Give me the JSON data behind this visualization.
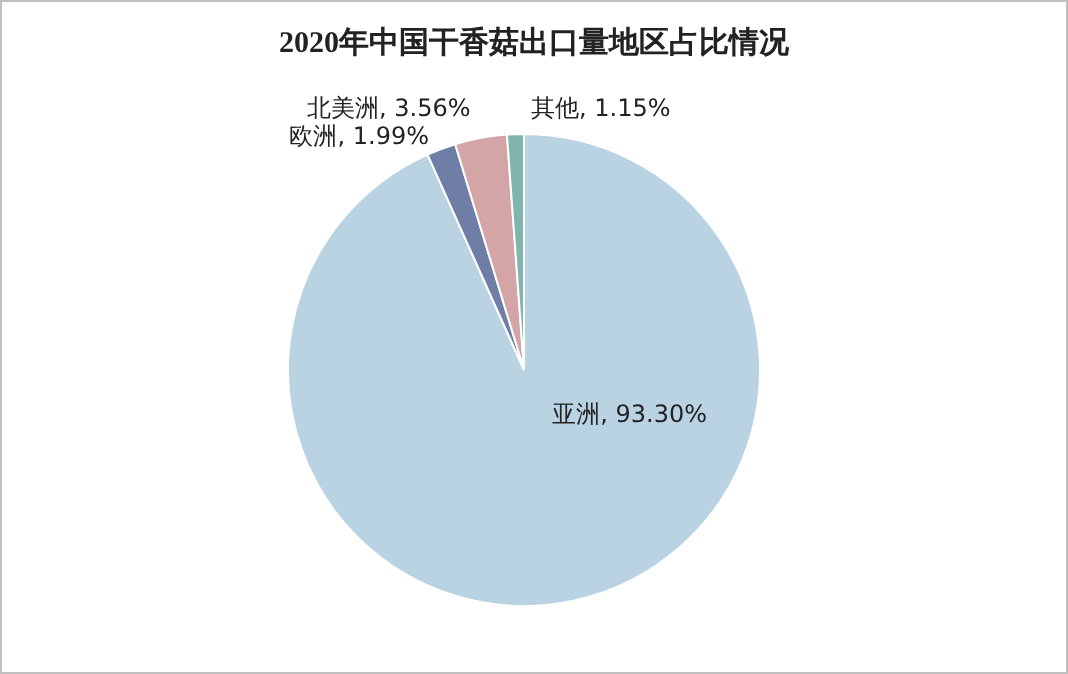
{
  "chart_data": {
    "type": "pie",
    "title": "2020年中国干香菇出口量地区占比情况",
    "categories": [
      "亚洲",
      "欧洲",
      "北美洲",
      "其他"
    ],
    "values": [
      93.3,
      1.99,
      3.56,
      1.15
    ],
    "colors": [
      "#b9d3e3",
      "#6f7ea6",
      "#d3a5a6",
      "#7fb5ae"
    ],
    "value_labels": [
      ", 93.30%",
      ", 1.99%",
      ", 3.56%",
      ", 1.15%"
    ],
    "legend": false
  }
}
